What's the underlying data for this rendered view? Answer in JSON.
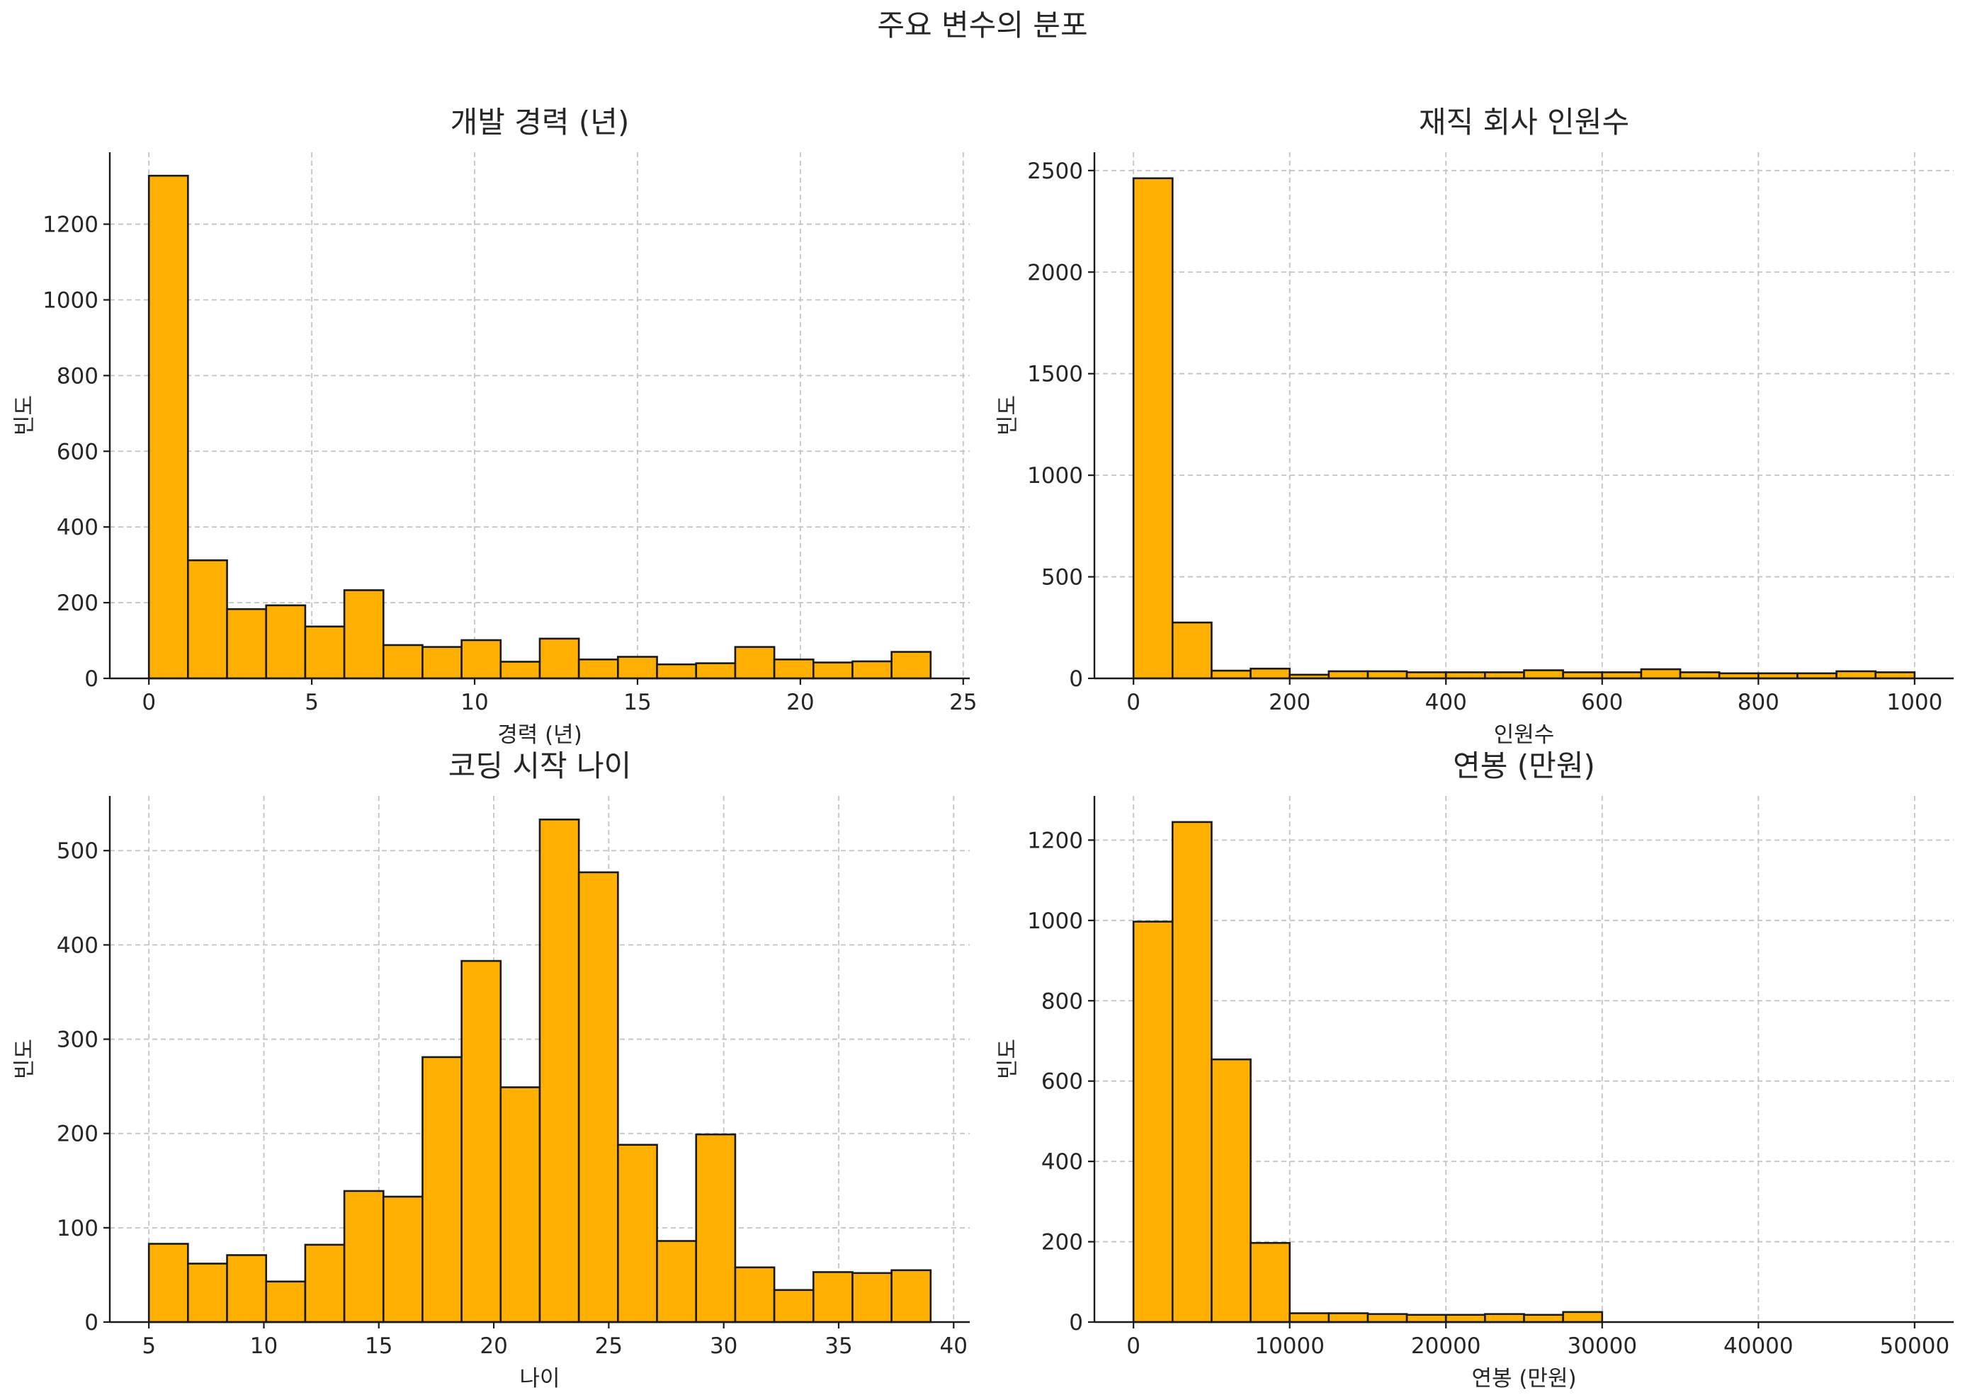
{
  "figure": {
    "title": "주요 변수의 분포"
  },
  "colors": {
    "bar_fill": "#FFB000",
    "bar_edge": "#1a1a1a",
    "grid": "#c4c4c4"
  },
  "chart_data": [
    {
      "type": "bar",
      "title": "개발 경력 (년)",
      "xlabel": "경력 (년)",
      "ylabel": "빈도",
      "grid": true,
      "xlim": [
        -1.2,
        25.2
      ],
      "ylim": [
        0,
        1390
      ],
      "xticks": [
        0,
        5,
        10,
        15,
        20,
        25
      ],
      "yticks": [
        0,
        200,
        400,
        600,
        800,
        1000,
        1200
      ],
      "bin_edges": [
        0,
        1.2,
        2.4,
        3.6,
        4.8,
        6,
        7.2,
        8.4,
        9.6,
        10.8,
        12,
        13.2,
        14.4,
        15.6,
        16.8,
        18,
        19.2,
        20.4,
        21.6,
        22.8,
        24
      ],
      "values": [
        1328,
        312,
        183,
        193,
        137,
        233,
        88,
        83,
        101,
        44,
        105,
        50,
        57,
        37,
        40,
        83,
        50,
        42,
        45,
        70
      ]
    },
    {
      "type": "bar",
      "title": "재직 회사 인원수",
      "xlabel": "인원수",
      "ylabel": "빈도",
      "grid": true,
      "xlim": [
        -50,
        1050
      ],
      "ylim": [
        0,
        2590
      ],
      "xticks": [
        0,
        200,
        400,
        600,
        800,
        1000
      ],
      "yticks": [
        0,
        500,
        1000,
        1500,
        2000,
        2500
      ],
      "bin_edges": [
        0,
        50,
        100,
        150,
        200,
        250,
        300,
        350,
        400,
        450,
        500,
        550,
        600,
        650,
        700,
        750,
        800,
        850,
        900,
        950,
        1000
      ],
      "values": [
        2462,
        275,
        38,
        48,
        18,
        35,
        35,
        30,
        30,
        30,
        40,
        30,
        30,
        45,
        30,
        25,
        25,
        25,
        35,
        30
      ]
    },
    {
      "type": "bar",
      "title": "코딩 시작 나이",
      "xlabel": "나이",
      "ylabel": "빈도",
      "grid": true,
      "xlim": [
        3.3,
        40.7
      ],
      "ylim": [
        0,
        558
      ],
      "xticks": [
        5,
        10,
        15,
        20,
        25,
        30,
        35,
        40
      ],
      "yticks": [
        0,
        100,
        200,
        300,
        400,
        500
      ],
      "bin_edges": [
        5,
        6.7,
        8.4,
        10.1,
        11.8,
        13.5,
        15.2,
        16.9,
        18.6,
        20.3,
        22,
        23.7,
        25.4,
        27.1,
        28.8,
        30.5,
        32.2,
        33.9,
        35.6,
        37.3,
        39
      ],
      "values": [
        83,
        62,
        71,
        43,
        82,
        139,
        133,
        281,
        383,
        249,
        533,
        477,
        188,
        86,
        199,
        58,
        34,
        53,
        52,
        55
      ]
    },
    {
      "type": "bar",
      "title": "연봉 (만원)",
      "xlabel": "연봉 (만원)",
      "ylabel": "빈도",
      "grid": true,
      "xlim": [
        -2500,
        52500
      ],
      "ylim": [
        0,
        1310
      ],
      "xticks": [
        0,
        10000,
        20000,
        30000,
        40000,
        50000
      ],
      "yticks": [
        0,
        200,
        400,
        600,
        800,
        1000,
        1200
      ],
      "bin_edges": [
        0,
        2500,
        5000,
        7500,
        10000,
        12500,
        15000,
        17500,
        20000,
        22500,
        25000,
        27500,
        30000,
        32500,
        35000,
        37500,
        40000,
        42500,
        45000,
        47500,
        50000
      ],
      "values": [
        997,
        1245,
        654,
        197,
        22,
        22,
        20,
        18,
        18,
        20,
        18,
        25,
        0,
        0,
        0,
        0,
        0,
        0,
        0,
        0
      ]
    }
  ]
}
